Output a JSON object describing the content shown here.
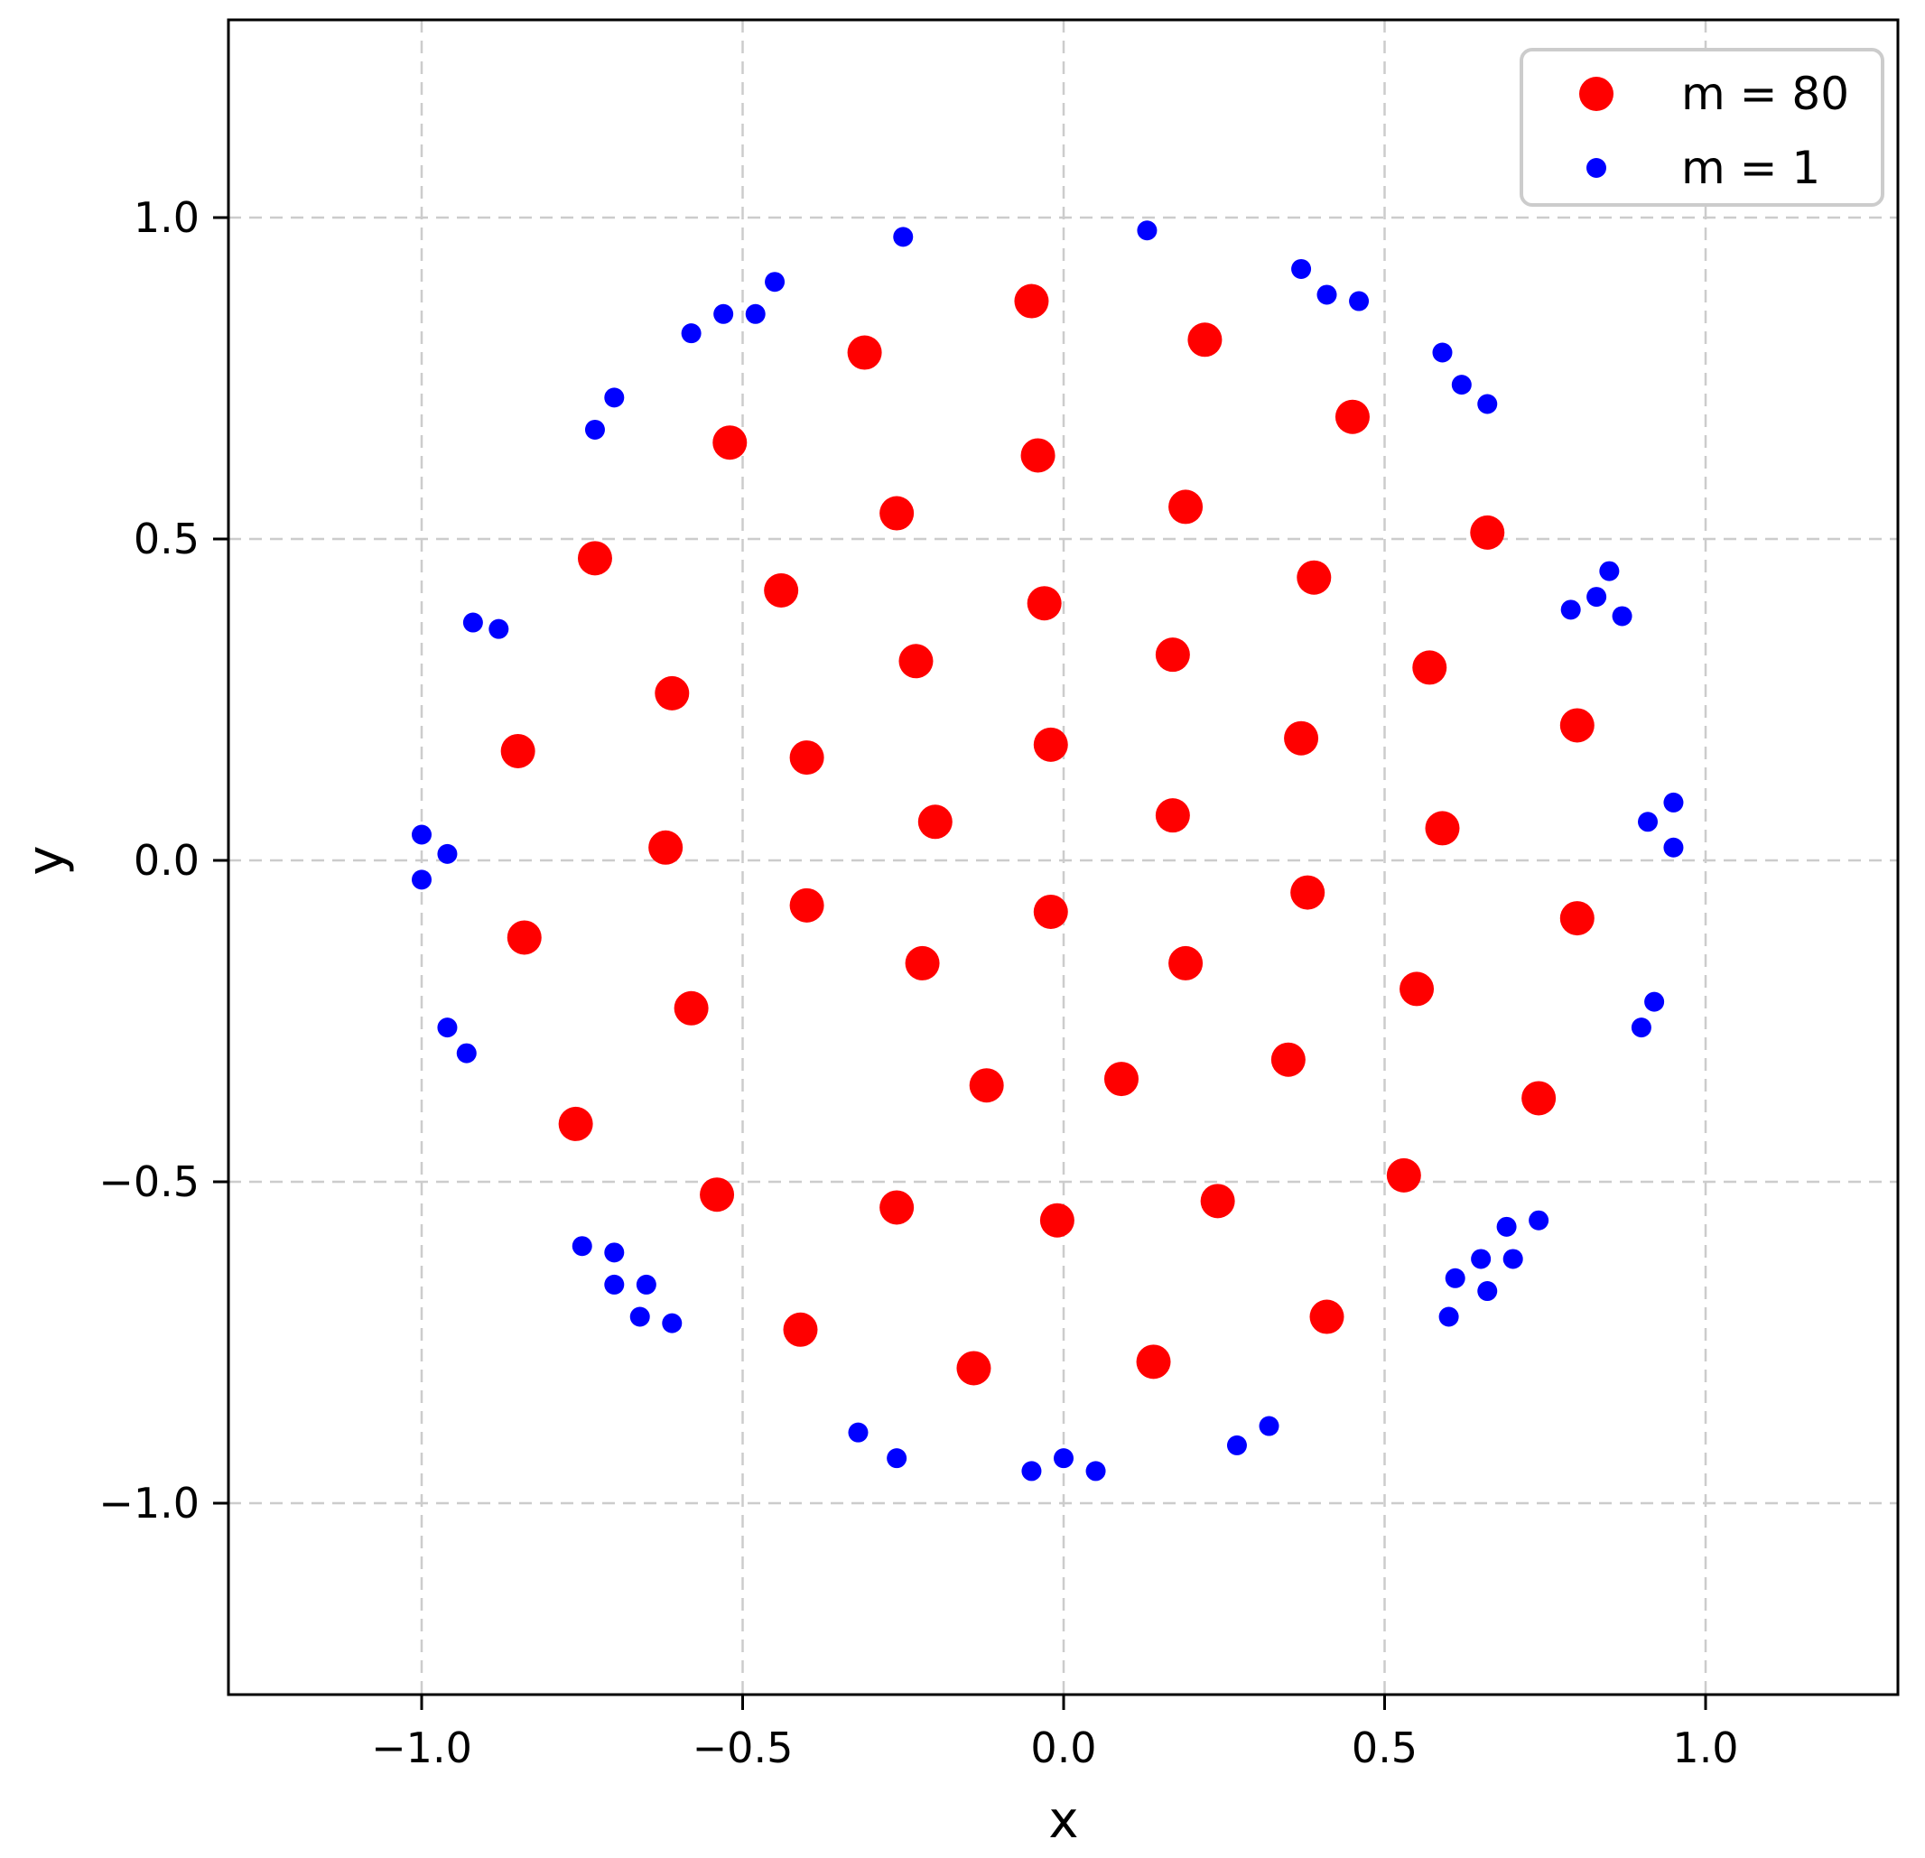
{
  "chart_data": {
    "type": "scatter",
    "title": "",
    "xlabel": "x",
    "ylabel": "y",
    "xlim": [
      -1.3,
      1.3
    ],
    "ylim": [
      -1.3,
      1.3
    ],
    "grid": true,
    "grid_style": "dashed",
    "grid_color": "#cccccc",
    "background_color": "#ffffff",
    "legend_position": "upper right",
    "xticks": [
      -1.0,
      -0.5,
      0.0,
      0.5,
      1.0
    ],
    "yticks": [
      -1.0,
      -0.5,
      0.0,
      0.5,
      1.0
    ],
    "xtick_labels": [
      "−1.0",
      "−0.5",
      "0.0",
      "0.5",
      "1.0"
    ],
    "ytick_labels": [
      "−1.0",
      "−0.5",
      "0.0",
      "0.5",
      "1.0"
    ],
    "series": [
      {
        "name": "m = 80",
        "color": "#ff0000",
        "marker": "circle",
        "marker_radius_px": 19,
        "points": [
          [
            -0.05,
            0.87
          ],
          [
            -0.31,
            0.79
          ],
          [
            0.22,
            0.81
          ],
          [
            -0.52,
            0.65
          ],
          [
            -0.04,
            0.63
          ],
          [
            0.45,
            0.69
          ],
          [
            0.66,
            0.51
          ],
          [
            -0.73,
            0.47
          ],
          [
            -0.44,
            0.42
          ],
          [
            -0.03,
            0.4
          ],
          [
            0.39,
            0.44
          ],
          [
            -0.26,
            0.54
          ],
          [
            0.19,
            0.55
          ],
          [
            -0.23,
            0.31
          ],
          [
            0.17,
            0.32
          ],
          [
            0.57,
            0.3
          ],
          [
            -0.61,
            0.26
          ],
          [
            -0.85,
            0.17
          ],
          [
            -0.4,
            0.16
          ],
          [
            -0.02,
            0.18
          ],
          [
            0.37,
            0.19
          ],
          [
            0.8,
            0.21
          ],
          [
            0.17,
            0.07
          ],
          [
            -0.2,
            0.06
          ],
          [
            -0.62,
            0.02
          ],
          [
            0.59,
            0.05
          ],
          [
            -0.4,
            -0.07
          ],
          [
            -0.02,
            -0.08
          ],
          [
            0.38,
            -0.05
          ],
          [
            0.8,
            -0.09
          ],
          [
            -0.84,
            -0.12
          ],
          [
            0.19,
            -0.16
          ],
          [
            -0.22,
            -0.16
          ],
          [
            0.55,
            -0.2
          ],
          [
            -0.58,
            -0.23
          ],
          [
            0.35,
            -0.31
          ],
          [
            0.09,
            -0.34
          ],
          [
            -0.12,
            -0.35
          ],
          [
            0.74,
            -0.37
          ],
          [
            -0.76,
            -0.41
          ],
          [
            -0.54,
            -0.52
          ],
          [
            -0.26,
            -0.54
          ],
          [
            -0.01,
            -0.56
          ],
          [
            0.24,
            -0.53
          ],
          [
            0.53,
            -0.49
          ],
          [
            -0.41,
            -0.73
          ],
          [
            0.41,
            -0.71
          ],
          [
            -0.14,
            -0.79
          ],
          [
            0.14,
            -0.78
          ]
        ]
      },
      {
        "name": "m = 1",
        "color": "#0000ff",
        "marker": "circle",
        "marker_radius_px": 11,
        "points": [
          [
            -0.25,
            0.97
          ],
          [
            0.13,
            0.98
          ],
          [
            -0.45,
            0.9
          ],
          [
            -0.48,
            0.85
          ],
          [
            -0.53,
            0.85
          ],
          [
            -0.58,
            0.82
          ],
          [
            0.37,
            0.92
          ],
          [
            0.41,
            0.88
          ],
          [
            0.46,
            0.87
          ],
          [
            -0.7,
            0.72
          ],
          [
            -0.73,
            0.67
          ],
          [
            0.59,
            0.79
          ],
          [
            0.62,
            0.74
          ],
          [
            0.66,
            0.71
          ],
          [
            -0.92,
            0.37
          ],
          [
            -0.88,
            0.36
          ],
          [
            0.85,
            0.45
          ],
          [
            0.83,
            0.41
          ],
          [
            0.79,
            0.39
          ],
          [
            0.87,
            0.38
          ],
          [
            -1.0,
            0.04
          ],
          [
            -0.96,
            0.01
          ],
          [
            -1.0,
            -0.03
          ],
          [
            0.95,
            0.09
          ],
          [
            0.91,
            0.06
          ],
          [
            0.95,
            0.02
          ],
          [
            -0.96,
            -0.26
          ],
          [
            -0.93,
            -0.3
          ],
          [
            0.92,
            -0.22
          ],
          [
            0.9,
            -0.26
          ],
          [
            -0.75,
            -0.6
          ],
          [
            -0.7,
            -0.61
          ],
          [
            -0.7,
            -0.66
          ],
          [
            -0.65,
            -0.66
          ],
          [
            -0.66,
            -0.71
          ],
          [
            -0.61,
            -0.72
          ],
          [
            0.69,
            -0.57
          ],
          [
            0.74,
            -0.56
          ],
          [
            0.65,
            -0.62
          ],
          [
            0.7,
            -0.62
          ],
          [
            0.61,
            -0.65
          ],
          [
            0.66,
            -0.67
          ],
          [
            0.6,
            -0.71
          ],
          [
            -0.32,
            -0.89
          ],
          [
            -0.26,
            -0.93
          ],
          [
            -0.05,
            -0.95
          ],
          [
            0.0,
            -0.93
          ],
          [
            0.05,
            -0.95
          ],
          [
            0.27,
            -0.91
          ],
          [
            0.32,
            -0.88
          ]
        ]
      }
    ]
  },
  "legend": {
    "items": [
      {
        "label": "m = 80",
        "swatch_color": "#ff0000"
      },
      {
        "label": "m = 1",
        "swatch_color": "#0000ff"
      }
    ],
    "border_color": "#cccccc",
    "background": "#ffffff"
  },
  "axes": {
    "spine_color": "#000000",
    "tick_color": "#000000"
  }
}
